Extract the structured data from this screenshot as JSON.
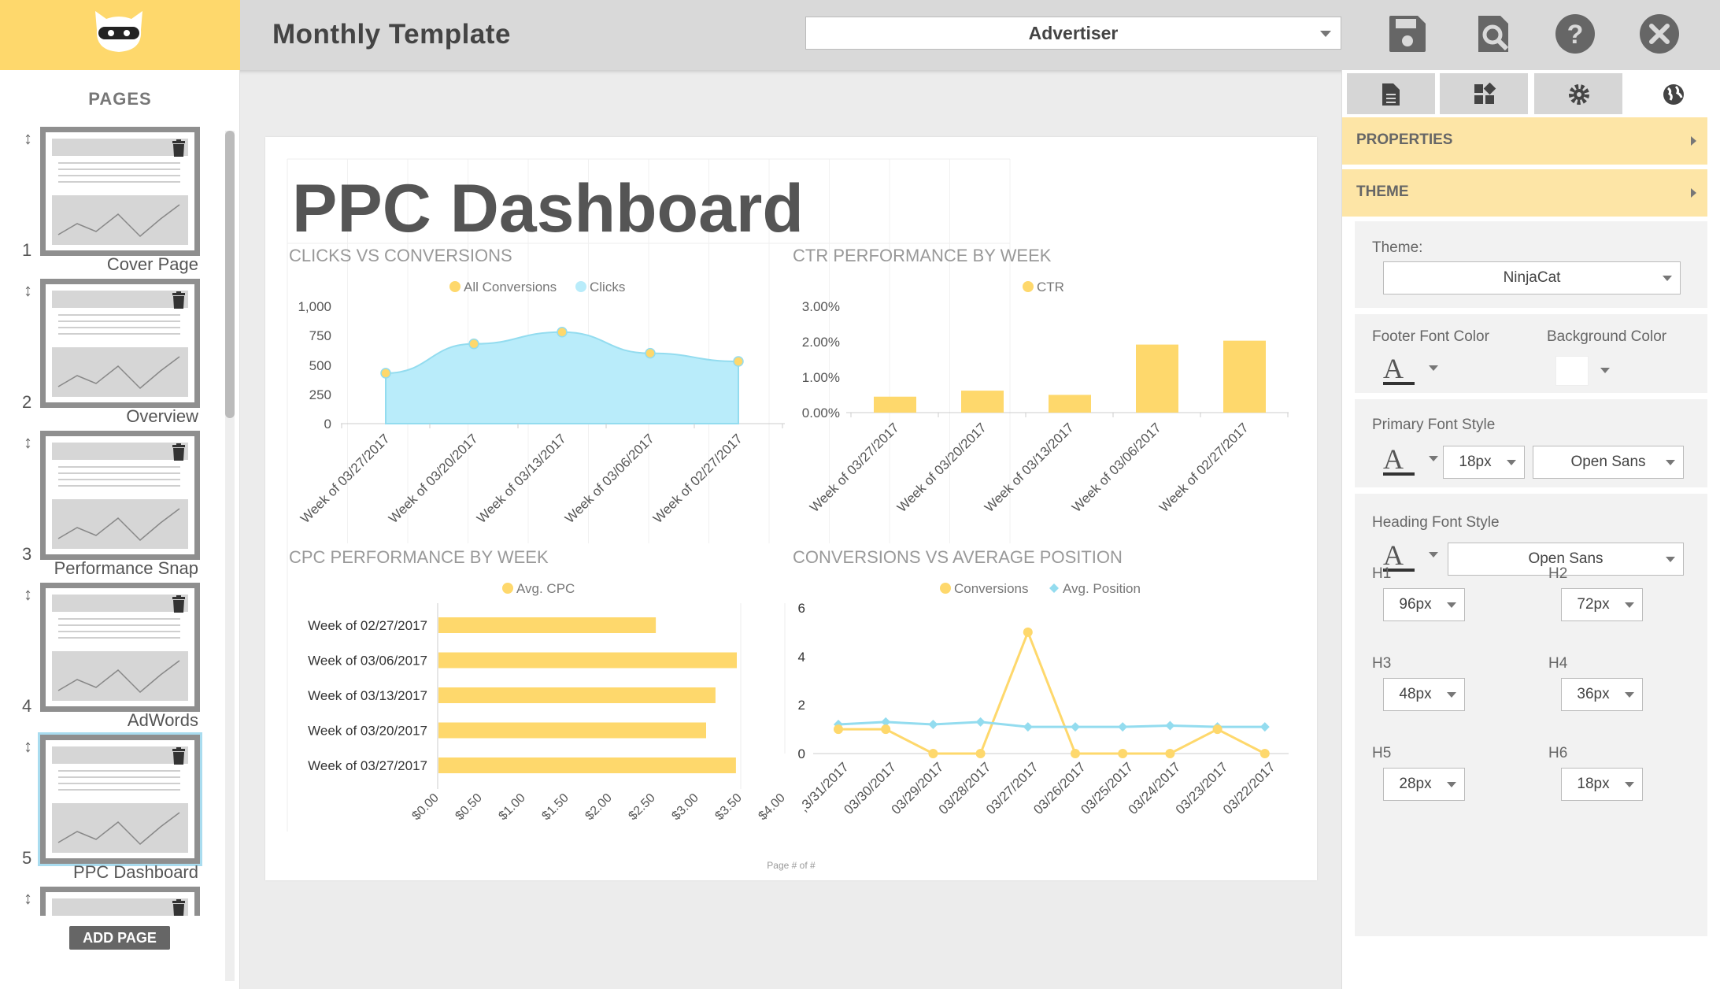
{
  "header": {
    "title": "Monthly Template",
    "advertiser": "Advertiser"
  },
  "sidebar": {
    "title": "PAGES",
    "pages": [
      {
        "num": "1",
        "label": "Cover Page"
      },
      {
        "num": "2",
        "label": "Overview"
      },
      {
        "num": "3",
        "label": "Performance Snap"
      },
      {
        "num": "4",
        "label": "AdWords"
      },
      {
        "num": "5",
        "label": "PPC Dashboard"
      },
      {
        "num": "",
        "label": ""
      }
    ],
    "add_page": "ADD PAGE"
  },
  "canvas": {
    "heading": "PPC Dashboard",
    "footer": "Page # of #"
  },
  "chart_data": [
    {
      "type": "area",
      "title": "CLICKS VS CONVERSIONS",
      "legend": [
        "All Conversions",
        "Clicks"
      ],
      "categories": [
        "Week of 03/27/2017",
        "Week of 03/20/2017",
        "Week of 03/13/2017",
        "Week of 03/06/2017",
        "Week of 02/27/2017"
      ],
      "yticks": [
        "1,000",
        "750",
        "500",
        "250",
        "0"
      ],
      "ylim": [
        0,
        1000
      ],
      "series": [
        {
          "name": "Clicks",
          "values": [
            430,
            680,
            780,
            600,
            530
          ]
        },
        {
          "name": "All Conversions",
          "values": [
            430,
            680,
            780,
            600,
            530
          ]
        }
      ]
    },
    {
      "type": "bar",
      "title": "CTR PERFORMANCE BY WEEK",
      "legend": [
        "CTR"
      ],
      "categories": [
        "Week of 03/27/2017",
        "Week of 03/20/2017",
        "Week of 03/13/2017",
        "Week of 03/06/2017",
        "Week of 02/27/2017"
      ],
      "yticks": [
        "3.00%",
        "2.00%",
        "1.00%",
        "0.00%"
      ],
      "ylim": [
        0,
        3
      ],
      "values": [
        0.45,
        0.62,
        0.5,
        1.92,
        2.03
      ]
    },
    {
      "type": "bar",
      "title": "CPC PERFORMANCE BY WEEK",
      "legend": [
        "Avg. CPC"
      ],
      "categories": [
        "Week of 02/27/2017",
        "Week of 03/06/2017",
        "Week of 03/13/2017",
        "Week of 03/20/2017",
        "Week of 03/27/2017"
      ],
      "xticks": [
        "$0.00",
        "$0.50",
        "$1.00",
        "$1.50",
        "$2.00",
        "$2.50",
        "$3.00",
        "$3.50",
        "$4.00"
      ],
      "xlim": [
        0,
        4
      ],
      "values": [
        2.55,
        3.5,
        3.25,
        3.14,
        3.49
      ]
    },
    {
      "type": "line",
      "title": "CONVERSIONS VS AVERAGE POSITION",
      "legend": [
        "Conversions",
        "Avg. Position"
      ],
      "categories": [
        "03/31/2017",
        "03/30/2017",
        "03/29/2017",
        "03/28/2017",
        "03/27/2017",
        "03/26/2017",
        "03/25/2017",
        "03/24/2017",
        "03/23/2017",
        "03/22/2017"
      ],
      "category_labels": [
        ",3/31/2017",
        "03/30/2017",
        "03/29/2017",
        "03/28/2017",
        "03/27/2017",
        "03/26/2017",
        "03/25/2017",
        "03/24/2017",
        "03/23/2017",
        "03/22/2017"
      ],
      "yticks": [
        "6",
        "4",
        "2",
        "0"
      ],
      "ylim": [
        0,
        6
      ],
      "series": [
        {
          "name": "Conversions",
          "values": [
            1,
            1,
            0,
            0,
            5,
            0,
            0,
            0,
            1,
            0
          ]
        },
        {
          "name": "Avg. Position",
          "values": [
            1.2,
            1.3,
            1.2,
            1.3,
            1.1,
            1.1,
            1.1,
            1.15,
            1.1,
            1.1
          ]
        }
      ]
    }
  ],
  "colors": {
    "yellow": "#fed86c",
    "blue": "#b9ecfa",
    "blue_line": "#93dcef",
    "accordion": "#fde5a6"
  },
  "rightpanel": {
    "tabs": [
      "document-icon",
      "widgets-icon",
      "gear-icon",
      "globe-icon"
    ],
    "properties": "PROPERTIES",
    "theme": "THEME",
    "theme_label": "Theme:",
    "theme_value": "NinjaCat",
    "footer_font_color": "Footer Font Color",
    "background_color": "Background Color",
    "primary_font_style": "Primary Font Style",
    "primary_size": "18px",
    "primary_font": "Open Sans",
    "heading_font_style": "Heading Font Style",
    "heading_font": "Open Sans",
    "glyph": "A",
    "headings": [
      {
        "label": "H1",
        "value": "96px"
      },
      {
        "label": "H2",
        "value": "72px"
      },
      {
        "label": "H3",
        "value": "48px"
      },
      {
        "label": "H4",
        "value": "36px"
      },
      {
        "label": "H5",
        "value": "28px"
      },
      {
        "label": "H6",
        "value": "18px"
      }
    ]
  }
}
